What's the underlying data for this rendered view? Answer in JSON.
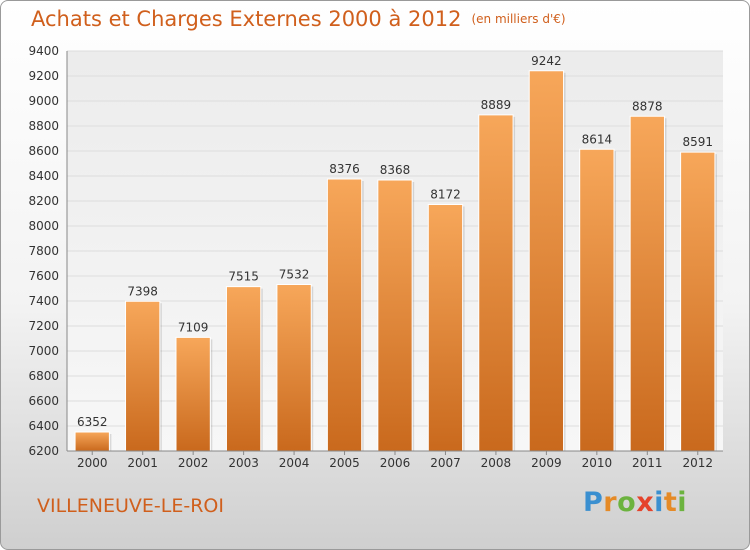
{
  "title": {
    "main": "Achats et Charges Externes 2000 à 2012",
    "unit": "(en milliers d'€)"
  },
  "city": "VILLENEUVE-LE-ROI",
  "logo": {
    "letters": [
      "P",
      "r",
      "o",
      "x",
      "i",
      "t",
      "i"
    ]
  },
  "colors": {
    "title": "#d05f1c",
    "bar_top": "#f7a75a",
    "bar_bottom": "#c9691d",
    "grid": "#dddddd"
  },
  "chart_data": {
    "type": "bar",
    "categories": [
      "2000",
      "2001",
      "2002",
      "2003",
      "2004",
      "2005",
      "2006",
      "2007",
      "2008",
      "2009",
      "2010",
      "2011",
      "2012"
    ],
    "values": [
      6352,
      7398,
      7109,
      7515,
      7532,
      8376,
      8368,
      8172,
      8889,
      9242,
      8614,
      8878,
      8591
    ],
    "ylim": [
      6200,
      9400
    ],
    "yticks": [
      6200,
      6400,
      6600,
      6800,
      7000,
      7200,
      7400,
      7600,
      7800,
      8000,
      8200,
      8400,
      8600,
      8800,
      9000,
      9200,
      9400
    ],
    "grid": true,
    "data_labels": true,
    "legend": "none"
  }
}
